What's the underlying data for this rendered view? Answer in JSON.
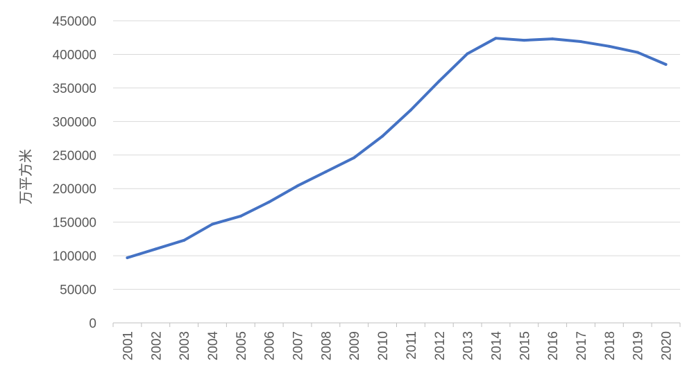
{
  "chart_data": {
    "type": "line",
    "title": "",
    "xlabel": "",
    "ylabel": "万平方米",
    "x": [
      "2001",
      "2002",
      "2003",
      "2004",
      "2005",
      "2006",
      "2007",
      "2008",
      "2009",
      "2010",
      "2011",
      "2012",
      "2013",
      "2014",
      "2015",
      "2016",
      "2017",
      "2018",
      "2019",
      "2020"
    ],
    "series": [
      {
        "values": [
          97000,
          110000,
          123000,
          147000,
          159000,
          180000,
          204000,
          225000,
          246000,
          278000,
          317000,
          360000,
          401000,
          424000,
          421000,
          423000,
          419000,
          412000,
          403000,
          385000
        ]
      }
    ],
    "ylim": [
      0,
      450000
    ],
    "yticks": [
      "0",
      "50000",
      "100000",
      "150000",
      "200000",
      "250000",
      "300000",
      "350000",
      "400000",
      "450000"
    ],
    "grid": true,
    "legend": "none",
    "colors": {
      "line": "#4472c4",
      "grid": "#d9d9d9",
      "text": "#595959"
    }
  }
}
